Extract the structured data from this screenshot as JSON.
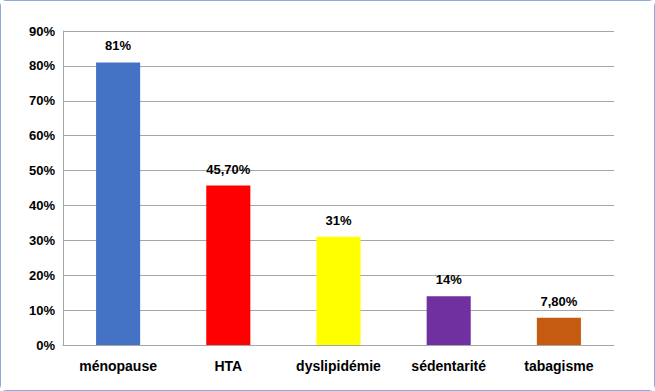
{
  "chart_data": {
    "type": "bar",
    "categories": [
      "ménopause",
      "HTA",
      "dyslipidémie",
      "sédentarité",
      "tabagisme"
    ],
    "values": [
      81,
      45.7,
      31,
      14,
      7.8
    ],
    "value_labels": [
      "81%",
      "45,70%",
      "31%",
      "14%",
      "7,80%"
    ],
    "colors": [
      "#4472c4",
      "#ff0000",
      "#ffff00",
      "#7030a0",
      "#c55a11"
    ],
    "ylim": [
      0,
      90
    ],
    "yticks": [
      {
        "value": 0,
        "label": "0%"
      },
      {
        "value": 10,
        "label": "10%"
      },
      {
        "value": 20,
        "label": "20%"
      },
      {
        "value": 30,
        "label": "30%"
      },
      {
        "value": 40,
        "label": "40%"
      },
      {
        "value": 50,
        "label": "50%"
      },
      {
        "value": 60,
        "label": "60%"
      },
      {
        "value": 70,
        "label": "70%"
      },
      {
        "value": 80,
        "label": "80%"
      },
      {
        "value": 90,
        "label": "90%"
      }
    ],
    "grid": true,
    "data_labels": true
  }
}
